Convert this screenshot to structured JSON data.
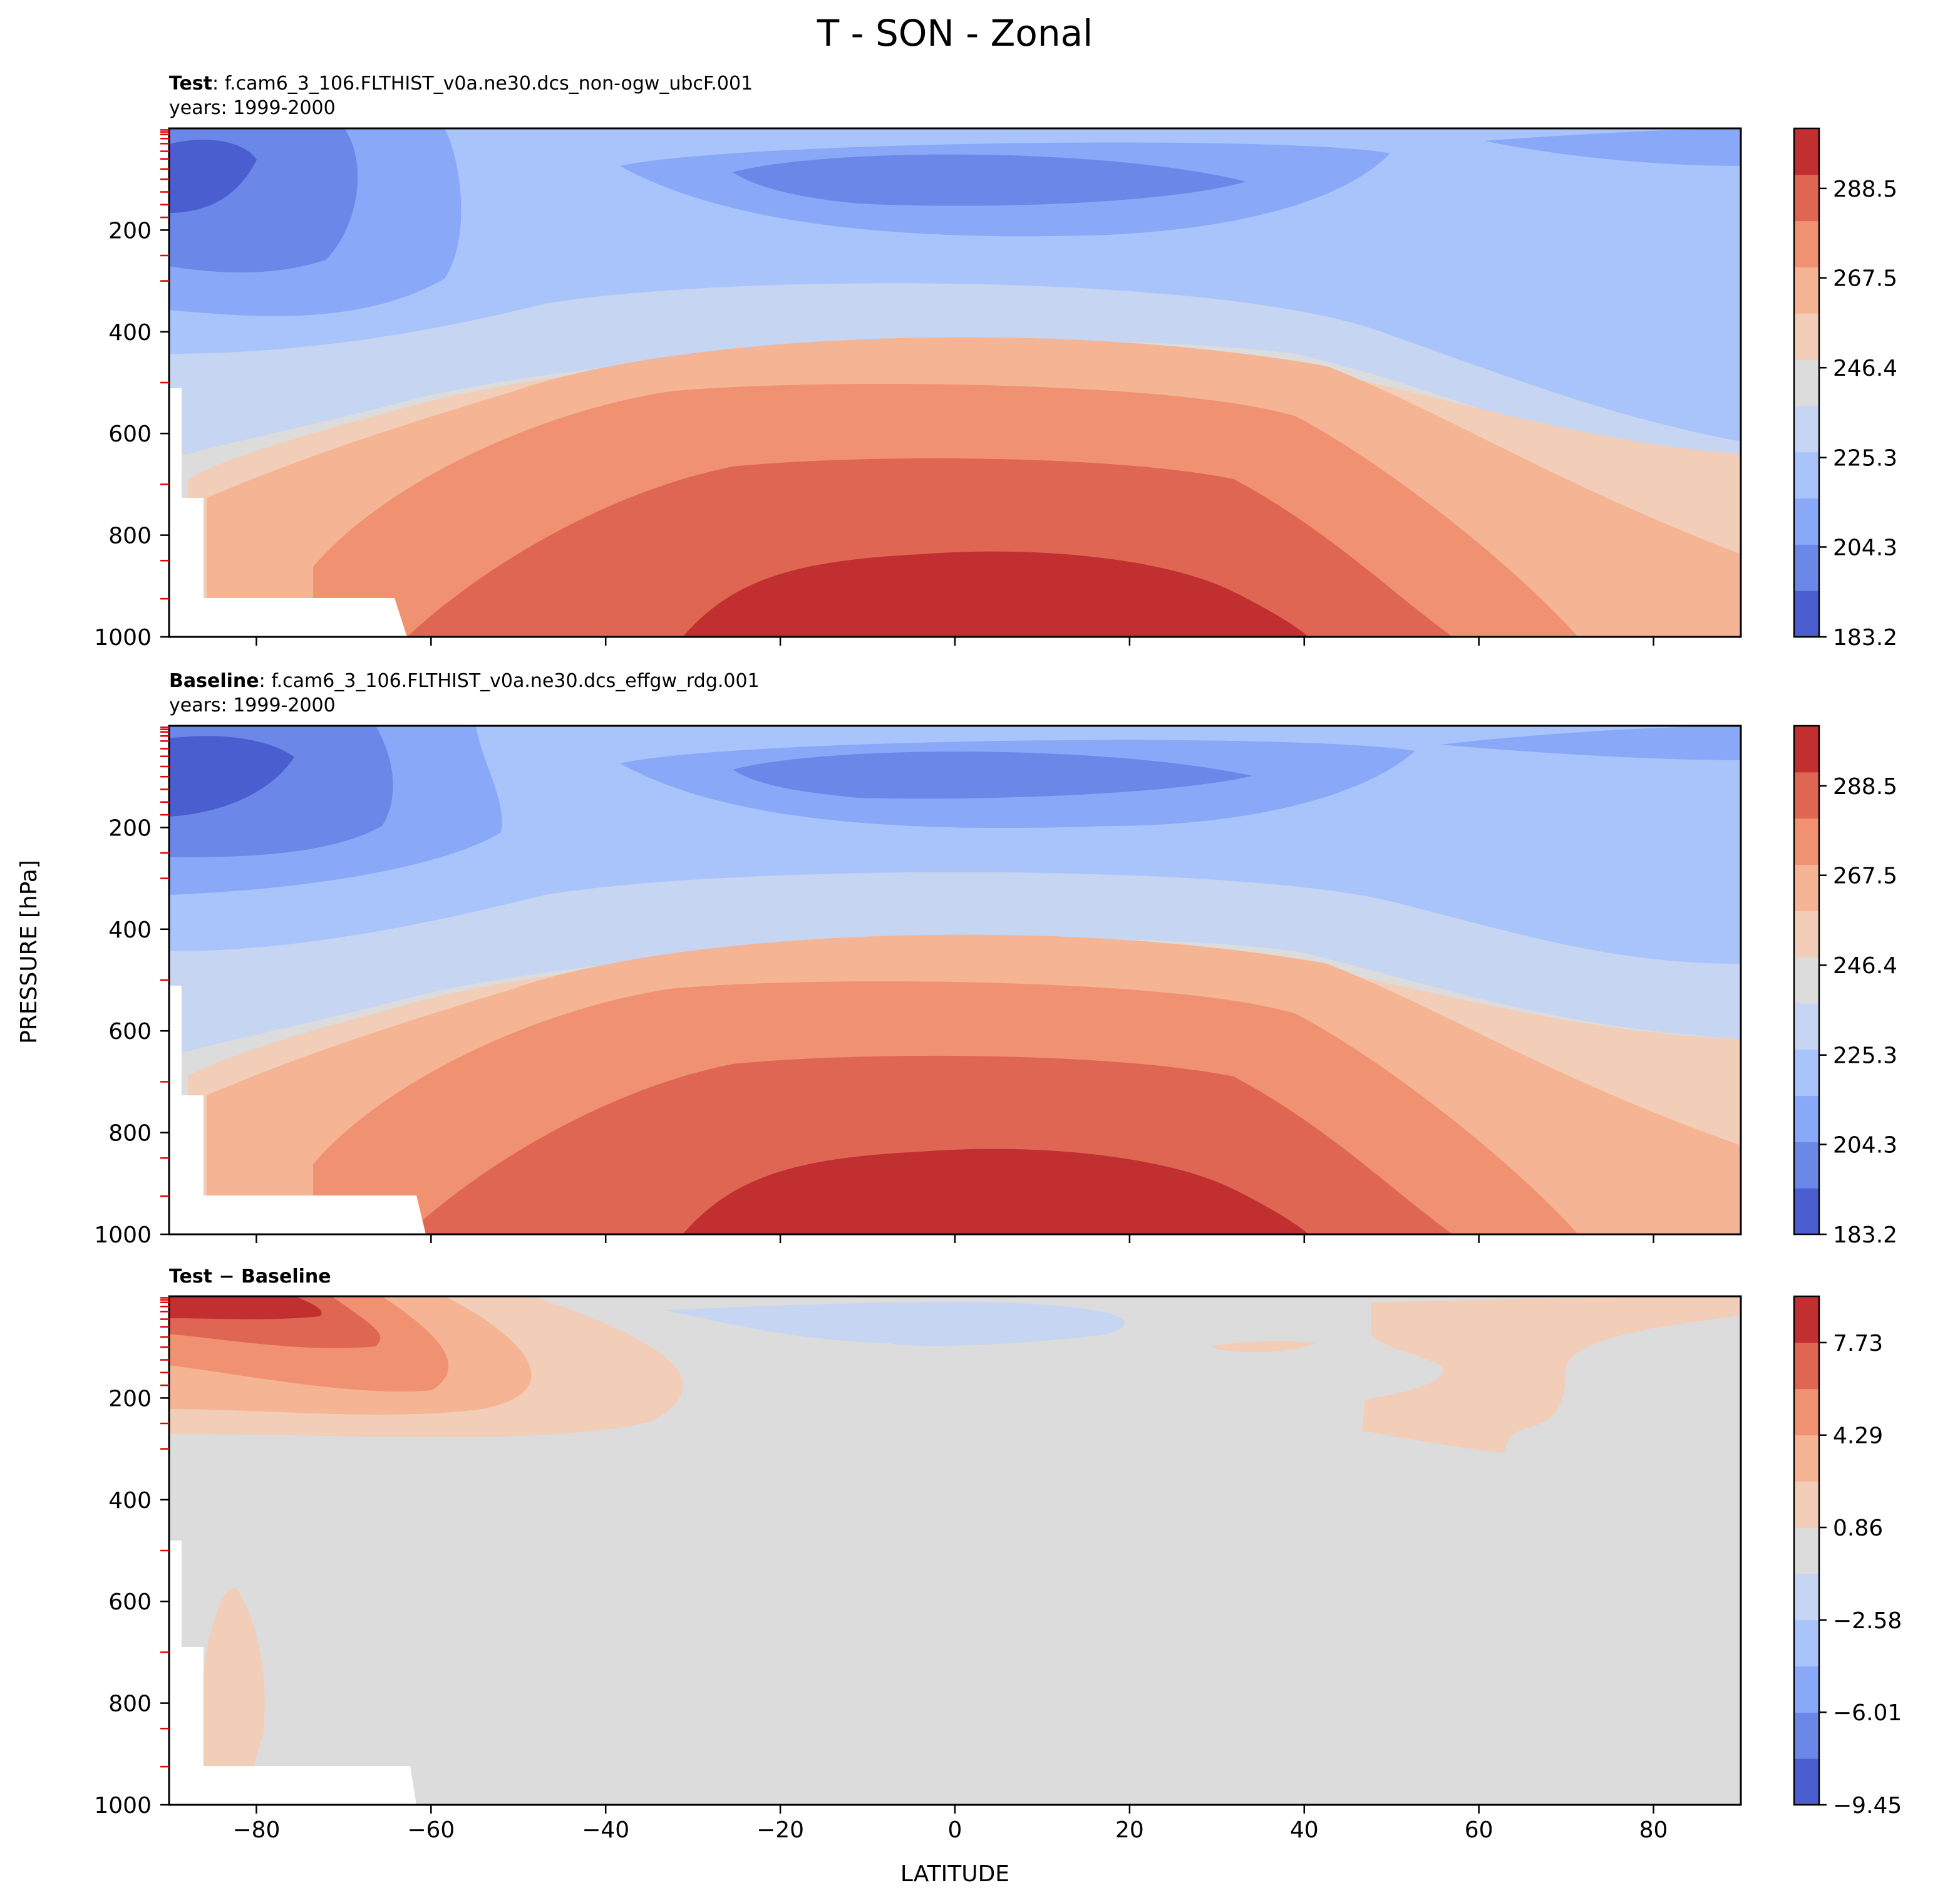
{
  "chart_data": {
    "type": "heatmap",
    "title": "T - SON - Zonal",
    "xlabel": "LATITUDE",
    "ylabel": "PRESSURE [hPa]",
    "xlim": [
      -90,
      90
    ],
    "ylim": [
      1000,
      0
    ],
    "x_ticks": [
      "−80",
      "−60",
      "−40",
      "−20",
      "0",
      "20",
      "40",
      "60",
      "80"
    ],
    "y_ticks": [
      "200",
      "400",
      "600",
      "800",
      "1000"
    ],
    "panels": [
      {
        "id": "test",
        "bold_label": "Test",
        "case_name": ": f.cam6_3_106.FLTHIST_v0a.ne30.dcs_non-ogw_ubcF.001",
        "years": "years: 1999-2000",
        "colorbar": {
          "vmin": 183.2,
          "vmax": 302.6,
          "labels": [
            "288.5",
            "267.5",
            "246.4",
            "225.3",
            "204.3",
            "183.2"
          ],
          "colors": [
            "#4a5ed0",
            "#6b88e8",
            "#8aa8f8",
            "#a8c4fb",
            "#c5d5f2",
            "#dcdcdc",
            "#f2cdb8",
            "#f5b494",
            "#f09272",
            "#df6652",
            "#c12f30"
          ]
        }
      },
      {
        "id": "baseline",
        "bold_label": "Baseline",
        "case_name": ": f.cam6_3_106.FLTHIST_v0a.ne30.dcs_effgw_rdg.001",
        "years": "years: 1999-2000",
        "colorbar": {
          "vmin": 183.2,
          "vmax": 302.6,
          "labels": [
            "288.5",
            "267.5",
            "246.4",
            "225.3",
            "204.3",
            "183.2"
          ],
          "colors": [
            "#4a5ed0",
            "#6b88e8",
            "#8aa8f8",
            "#a8c4fb",
            "#c5d5f2",
            "#dcdcdc",
            "#f2cdb8",
            "#f5b494",
            "#f09272",
            "#df6652",
            "#c12f30"
          ]
        }
      },
      {
        "id": "diff",
        "bold_label": "Test − Baseline",
        "case_name": "",
        "years": "",
        "colorbar": {
          "vmin": -9.45,
          "vmax": 9.45,
          "labels": [
            "7.73",
            "4.29",
            "0.86",
            "−2.58",
            "−6.01",
            "−9.45"
          ],
          "colors": [
            "#4a5ed0",
            "#6b88e8",
            "#8aa8f8",
            "#a8c4fb",
            "#c5d5f2",
            "#dcdcdc",
            "#f2cdb8",
            "#f5b494",
            "#f09272",
            "#df6652",
            "#c12f30"
          ]
        }
      }
    ]
  }
}
